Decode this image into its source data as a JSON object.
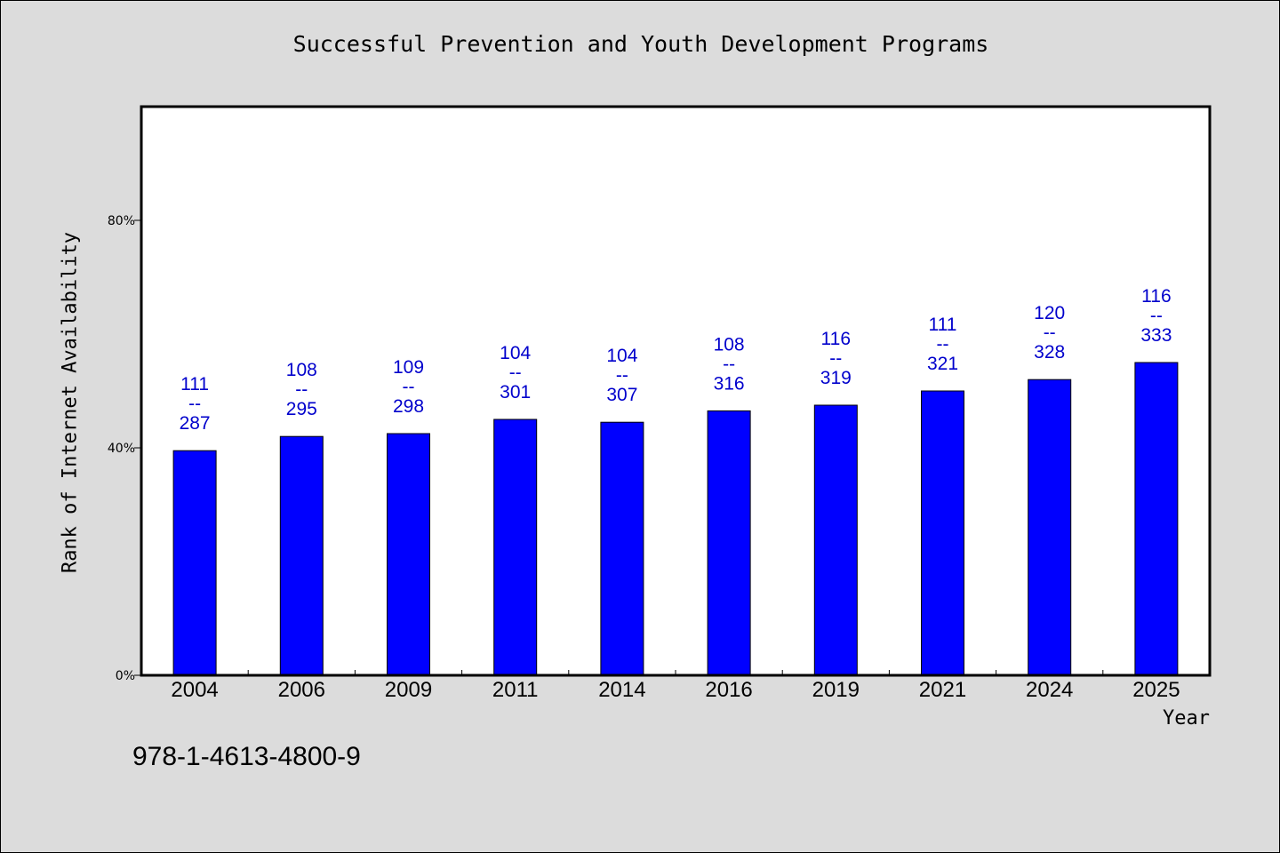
{
  "chart_data": {
    "type": "bar",
    "title": "Successful Prevention and Youth Development Programs",
    "xlabel": "Year",
    "ylabel": "Rank of Internet Availability",
    "categories": [
      "2004",
      "2006",
      "2009",
      "2011",
      "2014",
      "2016",
      "2019",
      "2021",
      "2024",
      "2025"
    ],
    "values": [
      39.5,
      42.0,
      42.5,
      45.0,
      44.5,
      46.5,
      47.5,
      50.0,
      52.0,
      55.0
    ],
    "value_unit": "%",
    "data_labels": [
      [
        "111",
        "--",
        "287"
      ],
      [
        "108",
        "--",
        "295"
      ],
      [
        "109",
        "--",
        "298"
      ],
      [
        "104",
        "--",
        "301"
      ],
      [
        "104",
        "--",
        "307"
      ],
      [
        "108",
        "--",
        "316"
      ],
      [
        "116",
        "--",
        "319"
      ],
      [
        "111",
        "--",
        "321"
      ],
      [
        "120",
        "--",
        "328"
      ],
      [
        "116",
        "--",
        "333"
      ]
    ],
    "ylim": [
      0,
      100
    ],
    "yticks": [
      0,
      40,
      80
    ],
    "ytick_labels": [
      "0%",
      "40%",
      "80%"
    ],
    "grid": false,
    "legend": "none",
    "bar_color": "#0000ff",
    "label_color": "#0000cc",
    "background_color": "#dcdcdc",
    "plot_background": "#ffffff"
  },
  "footer": {
    "code": "978-1-4613-4800-9"
  }
}
